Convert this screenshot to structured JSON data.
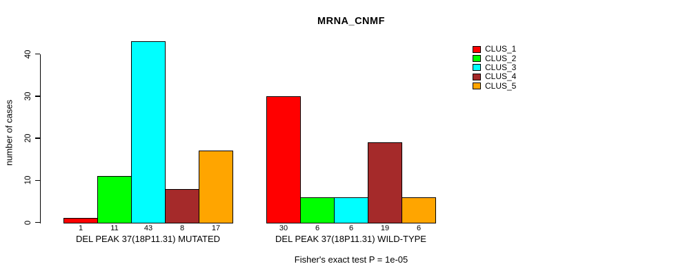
{
  "title": "MRNA_CNMF",
  "chart_data": {
    "type": "bar",
    "title": "MRNA_CNMF",
    "ylabel": "number of cases",
    "xlabel": "",
    "yticks": [
      0,
      10,
      20,
      30,
      40
    ],
    "ylim": [
      0,
      43
    ],
    "grid": false,
    "legend_position": "top-right",
    "series": [
      {
        "name": "CLUS_1",
        "color": "#ff0000"
      },
      {
        "name": "CLUS_2",
        "color": "#00ff00"
      },
      {
        "name": "CLUS_3",
        "color": "#00ffff"
      },
      {
        "name": "CLUS_4",
        "color": "#a52a2a"
      },
      {
        "name": "CLUS_5",
        "color": "#ffa500"
      }
    ],
    "groups": [
      {
        "label": "DEL PEAK 37(18P11.31) MUTATED",
        "values": [
          1,
          11,
          43,
          8,
          17
        ]
      },
      {
        "label": "DEL PEAK 37(18P11.31) WILD-TYPE",
        "values": [
          30,
          6,
          6,
          19,
          6
        ]
      }
    ],
    "annotation": "Fisher's exact test P = 1e-05",
    "axis_color": "#000000",
    "bar_border_color": "#000000",
    "background_color": "#ffffff"
  }
}
